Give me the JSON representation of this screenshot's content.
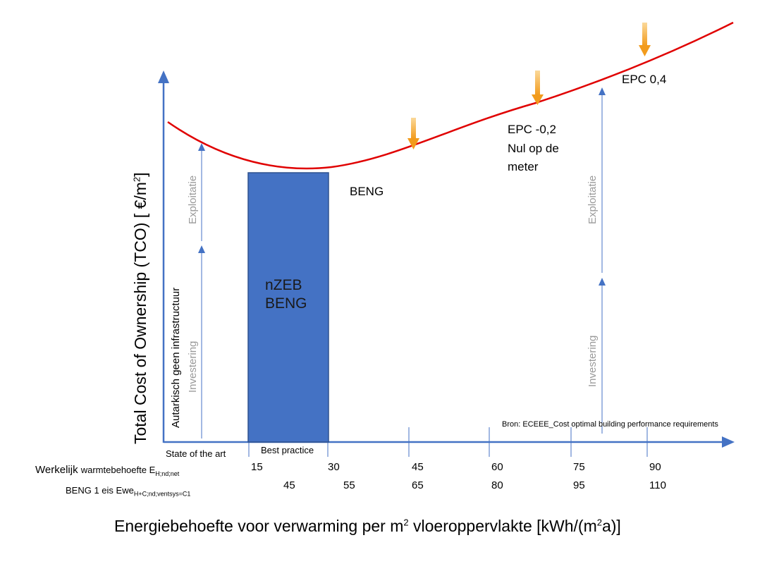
{
  "y_axis_label": "Total Cost of Ownership (TCO) [ €/m",
  "y_axis_label_sup": "2",
  "y_axis_label_end": "]",
  "x_axis_title": {
    "before": "Energiebehoefte voor verwarming per m",
    "sup1": "2",
    "middle": " vloeroppervlakte [kWh/(m",
    "sup2": "2",
    "after": "a)]"
  },
  "left_annotations": {
    "autarkisch": "Autarkisch geen infrastructuur",
    "investering": "Investering",
    "exploitatie": "Exploitatie"
  },
  "right_annotations": {
    "investering": "Investering",
    "exploitatie": "Exploitatie"
  },
  "box": {
    "line1": "nZEB",
    "line2": "BENG",
    "color": "#4472c4"
  },
  "curve_labels": {
    "beng": "BENG",
    "epc02": [
      "EPC -0,2",
      "Nul op de",
      "meter"
    ],
    "epc04": "EPC 0,4"
  },
  "source": "Bron: ECEEE_Cost optimal building performance requirements",
  "zone_labels": {
    "state_of_art": "State of the art",
    "best_practice": "Best practice"
  },
  "row1": {
    "label": "Werkelijk ",
    "label_small": "warmtebehoefte E",
    "label_sub": "H;nd;net",
    "values": [
      "15",
      "30",
      "45",
      "60",
      "75",
      "90"
    ]
  },
  "row2": {
    "label": "BENG 1 eis Ewe",
    "label_sub": "H+C;nd;ventsys=C1",
    "values": [
      "45",
      "55",
      "65",
      "80",
      "95",
      "110"
    ]
  },
  "colors": {
    "axis": "#4472c4",
    "curve": "#e00000",
    "arrow_marker": "#f5a623"
  }
}
